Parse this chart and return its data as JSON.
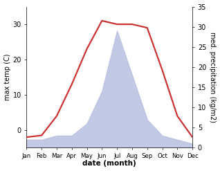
{
  "months": [
    "Jan",
    "Feb",
    "Mar",
    "Apr",
    "May",
    "Jun",
    "Jul",
    "Aug",
    "Sep",
    "Oct",
    "Nov",
    "Dec"
  ],
  "temperature": [
    -2,
    -1.5,
    4,
    13,
    23,
    31,
    30,
    30,
    29,
    17,
    4,
    -2
  ],
  "precipitation": [
    2,
    2,
    3,
    3,
    6,
    14,
    29,
    18,
    7,
    3,
    2,
    1
  ],
  "temp_color": "#cc3333",
  "precip_fill_color": "#b8c0e0",
  "temp_ylim": [
    -5,
    35
  ],
  "precip_ylim": [
    0,
    35
  ],
  "temp_yticks": [
    0,
    10,
    20,
    30
  ],
  "precip_yticks": [
    0,
    5,
    10,
    15,
    20,
    25,
    30,
    35
  ],
  "xlabel": "date (month)",
  "ylabel_left": "max temp (C)",
  "ylabel_right": "med. precipitation (kg/m2)",
  "bg_color": "#ffffff",
  "line_width": 1.6,
  "figsize": [
    3.18,
    2.47
  ],
  "dpi": 100
}
